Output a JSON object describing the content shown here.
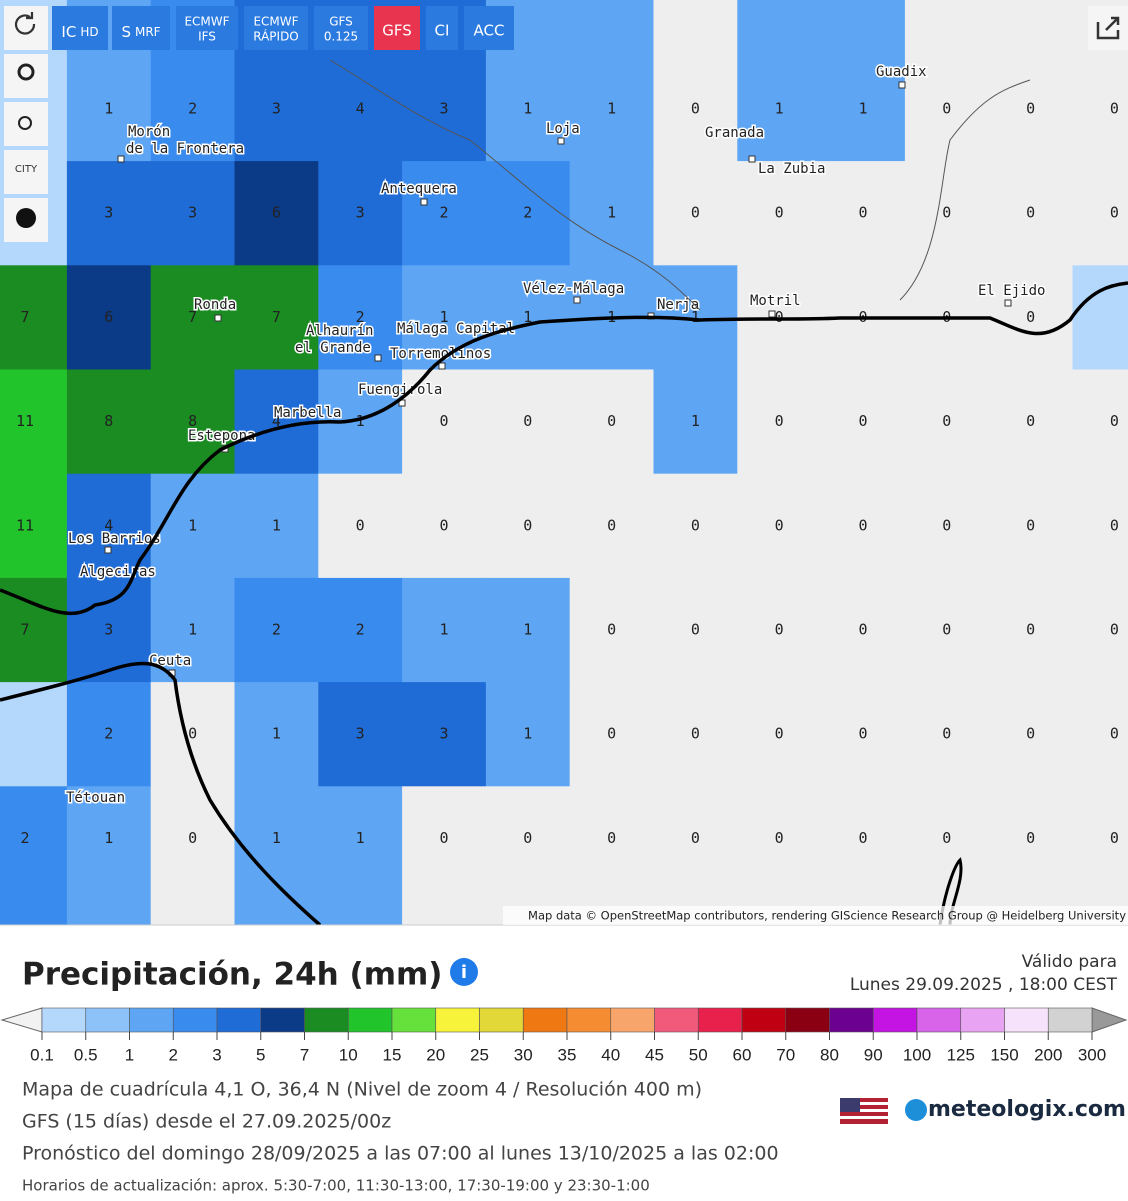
{
  "toolbar": {
    "buttons": [
      [
        "IC",
        "HD"
      ],
      [
        "S",
        "MRF"
      ],
      [
        "ECMWF",
        "IFS"
      ],
      [
        "ECMWF",
        "RÁPIDO"
      ],
      [
        "GFS",
        "0.125"
      ],
      [
        "GFS"
      ],
      [
        "CI"
      ],
      [
        "ACC"
      ]
    ],
    "active": 5,
    "city_icon": "CITY"
  },
  "map": {
    "grid": [
      [
        null,
        1,
        2,
        3,
        4,
        3,
        1,
        1,
        0,
        1,
        1,
        0,
        0,
        0
      ],
      [
        null,
        3,
        3,
        6,
        3,
        2,
        2,
        1,
        0,
        0,
        0,
        0,
        0,
        0
      ],
      [
        7,
        6,
        7,
        7,
        2,
        1,
        1,
        1,
        1,
        0,
        0,
        0,
        0,
        null
      ],
      [
        11,
        8,
        8,
        4,
        1,
        0,
        0,
        0,
        1,
        0,
        0,
        0,
        0,
        0
      ],
      [
        11,
        4,
        1,
        1,
        0,
        0,
        0,
        0,
        0,
        0,
        0,
        0,
        0,
        0
      ],
      [
        7,
        3,
        1,
        2,
        2,
        1,
        1,
        0,
        0,
        0,
        0,
        0,
        0,
        0
      ],
      [
        null,
        2,
        0,
        1,
        3,
        3,
        1,
        0,
        0,
        0,
        0,
        0,
        0,
        0
      ],
      [
        2,
        1,
        0,
        1,
        1,
        0,
        0,
        0,
        0,
        0,
        0,
        0,
        0,
        0
      ]
    ],
    "places": [
      "Morón",
      "de la Frontera",
      "Antequera",
      "Loja",
      "Granada",
      "La Zubia",
      "Guadix",
      "Ronda",
      "Alhaurín",
      "el Grande",
      "Málaga Capital",
      "Torremolinos",
      "Vélez-Málaga",
      "Nerja",
      "Motril",
      "El Ejido",
      "Fuengirola",
      "Marbella",
      "Estepona",
      "Los Barrios",
      "Algeciras",
      "Ceuta",
      "Tétouan"
    ],
    "attribution": "Map data © OpenStreetMap contributors, rendering GIScience Research Group @ Heidelberg University"
  },
  "footer": {
    "title": "Precipitación, 24h (mm)",
    "valid_label": "Válido para",
    "valid_date": "Lunes 29.09.2025 , 18:00 CEST",
    "legend": {
      "labels": [
        "0.1",
        "0.5",
        "1",
        "2",
        "3",
        "5",
        "7",
        "10",
        "15",
        "20",
        "25",
        "30",
        "35",
        "40",
        "45",
        "50",
        "60",
        "70",
        "80",
        "90",
        "100",
        "125",
        "150",
        "200",
        "300"
      ],
      "colors": [
        "#b4d8fb",
        "#8cc2f8",
        "#5ea6f4",
        "#3a8bee",
        "#1f6cd6",
        "#0b3a86",
        "#1a8c22",
        "#22c42c",
        "#66e03a",
        "#f7f23a",
        "#e2d838",
        "#f07812",
        "#f58c32",
        "#f8a56c",
        "#f25a7c",
        "#e8214c",
        "#c00012",
        "#8a0012",
        "#6c0090",
        "#c414e4",
        "#d864ea",
        "#e8a4f2",
        "#f6e2fb",
        "#d2d2d2"
      ]
    },
    "lines": [
      "Mapa de cuadrícula 4,1 O, 36,4 N (Nivel de zoom 4 / Resolución 400 m)",
      "GFS (15 días) desde el 27.09.2025/00z",
      "Pronóstico del domingo 28/09/2025 a las 07:00 al lunes 13/10/2025 a las 02:00",
      "Horarios de actualización: aprox. 5:30-7:00, 11:30-13:00, 17:30-19:00 y 23:30-1:00"
    ],
    "brand": "meteologix.com"
  }
}
